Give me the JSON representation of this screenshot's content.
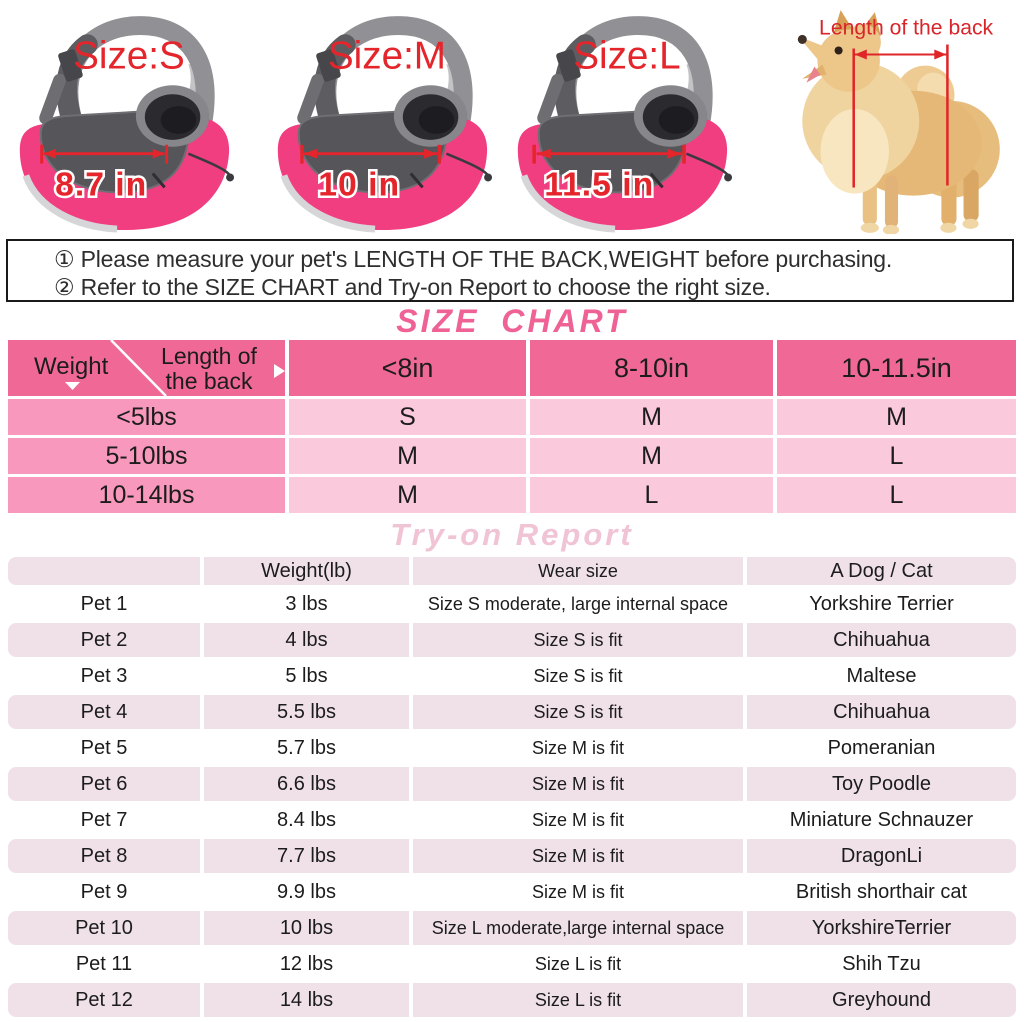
{
  "colors": {
    "header_pink": "#f06996",
    "row_label_pink": "#f898bc",
    "cell_pink": "#fac9db",
    "tryon_pink": "#efe1e7",
    "size_title_pink": "#ef6296",
    "tryon_title_pink": "#f0c3d5",
    "annotation_red": "#e4252b",
    "bag_pink": "#f13e80"
  },
  "photos": {
    "bags": [
      {
        "size_label": "Size:S",
        "measurement": "8.7 in"
      },
      {
        "size_label": "Size:M",
        "measurement": "10 in"
      },
      {
        "size_label": "Size:L",
        "measurement": "11.5 in"
      }
    ],
    "dog_label": "Length of the back"
  },
  "notice": {
    "lines": [
      "① Please measure your pet's LENGTH OF THE BACK,WEIGHT before purchasing.",
      "② Refer to the SIZE CHART and Try-on Report to choose the right size."
    ]
  },
  "size_chart": {
    "title": "SIZE CHART",
    "corner": {
      "row_axis": "Weight",
      "col_axis": "Length of the back"
    },
    "columns": [
      "<8in",
      "8-10in",
      "10-11.5in"
    ],
    "rows": [
      {
        "weight": "<5lbs",
        "sizes": [
          "S",
          "M",
          "M"
        ]
      },
      {
        "weight": "5-10lbs",
        "sizes": [
          "M",
          "M",
          "L"
        ]
      },
      {
        "weight": "10-14lbs",
        "sizes": [
          "M",
          "L",
          "L"
        ]
      }
    ]
  },
  "tryon": {
    "title": "Try-on Report",
    "headers": [
      "",
      "Weight(lb)",
      "Wear size",
      "A Dog / Cat"
    ],
    "rows": [
      [
        "Pet 1",
        "3 lbs",
        "Size S moderate, large internal space",
        "Yorkshire Terrier"
      ],
      [
        "Pet 2",
        "4 lbs",
        "Size S is fit",
        "Chihuahua"
      ],
      [
        "Pet 3",
        "5 lbs",
        "Size S is fit",
        "Maltese"
      ],
      [
        "Pet 4",
        "5.5 lbs",
        "Size S is fit",
        "Chihuahua"
      ],
      [
        "Pet 5",
        "5.7 lbs",
        "Size M is fit",
        "Pomeranian"
      ],
      [
        "Pet 6",
        "6.6 lbs",
        "Size M is fit",
        "Toy Poodle"
      ],
      [
        "Pet 7",
        "8.4 lbs",
        "Size M is fit",
        "Miniature Schnauzer"
      ],
      [
        "Pet 8",
        "7.7 lbs",
        "Size M is fit",
        "DragonLi"
      ],
      [
        "Pet 9",
        "9.9 lbs",
        "Size M is fit",
        "British shorthair cat"
      ],
      [
        "Pet 10",
        "10 lbs",
        "Size L moderate,large internal space",
        "YorkshireTerrier"
      ],
      [
        "Pet 11",
        "12 lbs",
        "Size L is fit",
        "Shih Tzu"
      ],
      [
        "Pet 12",
        "14 lbs",
        "Size L is fit",
        "Greyhound"
      ]
    ]
  }
}
